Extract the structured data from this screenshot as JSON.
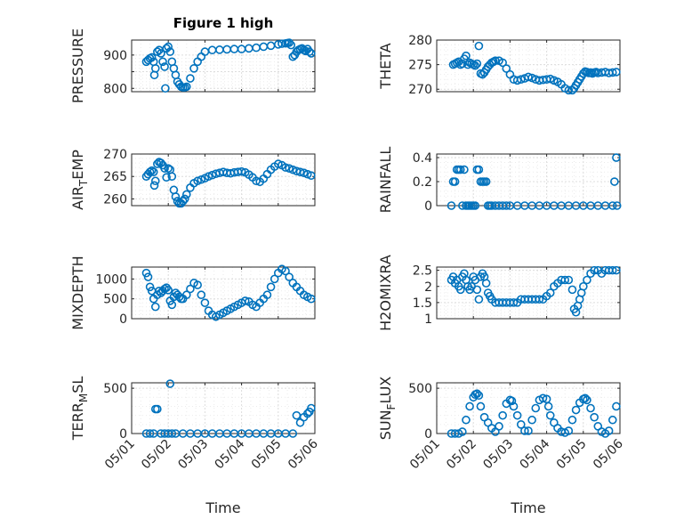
{
  "page": {
    "title": "Figure 1 high",
    "marker_color": "#0072bd"
  },
  "chart_data": [
    {
      "id": "pressure",
      "type": "scatter",
      "ylabel": "PRESSURE",
      "ylim": [
        790,
        945
      ],
      "yticks": [
        800,
        850,
        900
      ],
      "ytick_labels": [
        "800",
        "",
        "900"
      ],
      "grid": true,
      "series": [
        {
          "x": [
            1.4,
            1.45,
            1.5,
            1.55,
            1.6,
            1.62,
            1.65,
            1.7,
            1.75,
            1.8,
            1.85,
            1.9,
            1.92,
            1.95,
            2.0,
            2.05,
            2.1,
            2.15,
            2.2,
            2.25,
            2.3,
            2.35,
            2.4,
            2.45,
            2.5,
            2.6,
            2.7,
            2.8,
            2.9,
            3.0,
            3.2,
            3.4,
            3.6,
            3.8,
            4.0,
            4.2,
            4.4,
            4.6,
            4.8,
            5.0,
            5.1,
            5.2,
            5.25,
            5.3,
            5.35,
            5.4,
            5.45,
            5.5,
            5.55,
            5.6,
            5.65,
            5.7,
            5.75,
            5.8,
            5.85,
            5.9
          ],
          "y": [
            880,
            885,
            890,
            893,
            880,
            840,
            860,
            910,
            915,
            905,
            880,
            865,
            800,
            920,
            925,
            910,
            880,
            860,
            840,
            820,
            812,
            805,
            803,
            803,
            805,
            830,
            860,
            880,
            895,
            910,
            915,
            916,
            917,
            918,
            918,
            920,
            922,
            925,
            928,
            932,
            934,
            935,
            936,
            937,
            930,
            895,
            900,
            910,
            915,
            918,
            920,
            915,
            912,
            918,
            910,
            905
          ]
        }
      ]
    },
    {
      "id": "theta",
      "type": "scatter",
      "ylabel": "THETA",
      "ylim": [
        269.5,
        280
      ],
      "yticks": [
        270,
        275,
        280
      ],
      "ytick_labels": [
        "270",
        "275",
        "280"
      ],
      "grid": true,
      "series": [
        {
          "x": [
            1.45,
            1.5,
            1.55,
            1.6,
            1.65,
            1.7,
            1.75,
            1.8,
            1.85,
            1.9,
            1.95,
            2.0,
            2.05,
            2.1,
            2.15,
            2.2,
            2.25,
            2.3,
            2.35,
            2.4,
            2.45,
            2.5,
            2.55,
            2.6,
            2.7,
            2.8,
            2.9,
            3.0,
            3.1,
            3.2,
            3.3,
            3.4,
            3.5,
            3.6,
            3.7,
            3.8,
            3.9,
            4.0,
            4.1,
            4.2,
            4.3,
            4.4,
            4.5,
            4.6,
            4.7,
            4.75,
            4.8,
            4.85,
            4.9,
            4.95,
            5.0,
            5.05,
            5.1,
            5.15,
            5.2,
            5.25,
            5.3,
            5.35,
            5.4,
            5.5,
            5.6,
            5.7,
            5.8,
            5.9
          ],
          "y": [
            275,
            275.2,
            275.4,
            275.6,
            275,
            275.2,
            276.2,
            276.8,
            275,
            275.4,
            275.2,
            275,
            274.8,
            275.2,
            278.8,
            273.2,
            273,
            273.4,
            274,
            274.6,
            275,
            275.4,
            275.6,
            275.8,
            275.8,
            275.4,
            274.2,
            273,
            272,
            271.8,
            272,
            272.2,
            272.5,
            272.3,
            272,
            271.8,
            271.9,
            272,
            272.1,
            271.8,
            271.5,
            271,
            270.2,
            269.8,
            269.8,
            270.2,
            270.8,
            271.4,
            272,
            272.6,
            273.2,
            273.6,
            273.5,
            273.3,
            273.4,
            273.2,
            273.4,
            273.5,
            273.3,
            273.4,
            273.5,
            273.3,
            273.4,
            273.5
          ]
        }
      ]
    },
    {
      "id": "air_temp",
      "type": "scatter",
      "ylabel": "AIR",
      "ylabel_sub": "T",
      "ylabel_rest": "EMP",
      "ylim": [
        258.5,
        270
      ],
      "yticks": [
        260,
        265,
        270
      ],
      "ytick_labels": [
        "260",
        "265",
        "270"
      ],
      "grid": true,
      "series": [
        {
          "x": [
            1.4,
            1.45,
            1.5,
            1.55,
            1.6,
            1.62,
            1.65,
            1.7,
            1.75,
            1.8,
            1.85,
            1.9,
            1.95,
            2.0,
            2.05,
            2.1,
            2.15,
            2.2,
            2.25,
            2.3,
            2.35,
            2.4,
            2.45,
            2.5,
            2.6,
            2.7,
            2.8,
            2.9,
            3.0,
            3.1,
            3.2,
            3.3,
            3.4,
            3.5,
            3.6,
            3.7,
            3.8,
            3.9,
            4.0,
            4.1,
            4.2,
            4.3,
            4.4,
            4.5,
            4.6,
            4.7,
            4.8,
            4.9,
            5.0,
            5.1,
            5.2,
            5.3,
            5.4,
            5.5,
            5.6,
            5.7,
            5.8,
            5.9
          ],
          "y": [
            265,
            265.5,
            266,
            266.3,
            266,
            263,
            264,
            267.8,
            268.2,
            268,
            267.5,
            266.8,
            264.8,
            266.8,
            266.5,
            265,
            262,
            260.5,
            259.5,
            259,
            259,
            259.5,
            260,
            261,
            262.5,
            263.5,
            264,
            264.3,
            264.6,
            265,
            265.3,
            265.6,
            265.8,
            266,
            265.8,
            265.7,
            265.9,
            266,
            266.1,
            265.9,
            265.4,
            264.8,
            264,
            263.8,
            264.5,
            265.5,
            266.5,
            267.2,
            267.8,
            267.5,
            267,
            266.8,
            266.5,
            266.2,
            266,
            265.8,
            265.5,
            265.2
          ]
        }
      ]
    },
    {
      "id": "rainfall",
      "type": "scatter",
      "ylabel": "RAINFALL",
      "ylim": [
        0,
        0.43
      ],
      "yticks": [
        0,
        0.2,
        0.4
      ],
      "ytick_labels": [
        "0",
        "0.2",
        "0.4"
      ],
      "grid": true,
      "series": [
        {
          "x": [
            1.4,
            1.45,
            1.5,
            1.55,
            1.6,
            1.65,
            1.7,
            1.75,
            1.8,
            1.85,
            1.9,
            1.95,
            2.0,
            2.05,
            2.1,
            2.15,
            2.2,
            2.25,
            2.3,
            2.35,
            2.4,
            2.45,
            2.5,
            2.6,
            2.7,
            2.8,
            2.9,
            3.0,
            3.2,
            3.4,
            3.6,
            3.8,
            4.0,
            4.2,
            4.4,
            4.6,
            4.8,
            5.0,
            5.2,
            5.4,
            5.6,
            5.8,
            5.85,
            5.9,
            5.92
          ],
          "y": [
            0,
            0.2,
            0.2,
            0.3,
            0.3,
            0.3,
            0,
            0.3,
            0,
            0,
            0,
            0,
            0,
            0,
            0.3,
            0.3,
            0.2,
            0.2,
            0.2,
            0.2,
            0,
            0,
            0,
            0,
            0,
            0,
            0,
            0,
            0,
            0,
            0,
            0,
            0,
            0,
            0,
            0,
            0,
            0,
            0,
            0,
            0,
            0,
            0.2,
            0.4,
            0
          ]
        }
      ]
    },
    {
      "id": "mixdepth",
      "type": "scatter",
      "ylabel": "MIXDEPTH",
      "ylim": [
        0,
        1300
      ],
      "yticks": [
        0,
        500,
        1000
      ],
      "ytick_labels": [
        "0",
        "500",
        "1000"
      ],
      "grid": true,
      "series": [
        {
          "x": [
            1.4,
            1.45,
            1.5,
            1.55,
            1.6,
            1.65,
            1.7,
            1.75,
            1.8,
            1.85,
            1.9,
            1.95,
            2.0,
            2.05,
            2.1,
            2.15,
            2.2,
            2.25,
            2.3,
            2.35,
            2.4,
            2.5,
            2.6,
            2.7,
            2.8,
            2.9,
            3.0,
            3.1,
            3.2,
            3.3,
            3.4,
            3.5,
            3.6,
            3.7,
            3.8,
            3.9,
            4.0,
            4.1,
            4.2,
            4.3,
            4.4,
            4.5,
            4.6,
            4.7,
            4.8,
            4.9,
            5.0,
            5.1,
            5.2,
            5.3,
            5.4,
            5.5,
            5.6,
            5.7,
            5.8,
            5.9
          ],
          "y": [
            1150,
            1050,
            800,
            700,
            500,
            300,
            600,
            700,
            650,
            700,
            750,
            780,
            720,
            450,
            350,
            550,
            650,
            600,
            550,
            500,
            500,
            600,
            750,
            900,
            850,
            600,
            400,
            200,
            100,
            50,
            100,
            150,
            200,
            250,
            300,
            350,
            400,
            450,
            430,
            350,
            300,
            400,
            500,
            600,
            800,
            1000,
            1150,
            1250,
            1200,
            1050,
            900,
            800,
            700,
            600,
            550,
            500
          ]
        }
      ]
    },
    {
      "id": "h2omixra",
      "type": "scatter",
      "ylabel": "H2OMIXRA",
      "ylim": [
        1,
        2.6
      ],
      "yticks": [
        1,
        1.5,
        2,
        2.5
      ],
      "ytick_labels": [
        "1",
        "1.5",
        "2",
        "2.5"
      ],
      "grid": true,
      "series": [
        {
          "x": [
            1.4,
            1.45,
            1.5,
            1.55,
            1.6,
            1.65,
            1.7,
            1.75,
            1.8,
            1.85,
            1.9,
            1.95,
            2.0,
            2.05,
            2.1,
            2.15,
            2.2,
            2.25,
            2.3,
            2.35,
            2.4,
            2.45,
            2.5,
            2.6,
            2.7,
            2.8,
            2.9,
            3.0,
            3.1,
            3.2,
            3.3,
            3.4,
            3.5,
            3.6,
            3.7,
            3.8,
            3.9,
            4.0,
            4.1,
            4.2,
            4.3,
            4.4,
            4.5,
            4.6,
            4.7,
            4.75,
            4.8,
            4.85,
            4.9,
            4.95,
            5.0,
            5.1,
            5.2,
            5.3,
            5.4,
            5.5,
            5.6,
            5.7,
            5.8,
            5.9
          ],
          "y": [
            2.2,
            2.3,
            2.1,
            2.2,
            2.0,
            1.9,
            2.3,
            2.4,
            2.2,
            2.0,
            1.9,
            2.0,
            2.3,
            2.2,
            1.9,
            1.6,
            2.3,
            2.4,
            2.3,
            2.1,
            1.8,
            1.7,
            1.6,
            1.5,
            1.5,
            1.5,
            1.5,
            1.5,
            1.5,
            1.5,
            1.6,
            1.6,
            1.6,
            1.6,
            1.6,
            1.6,
            1.6,
            1.7,
            1.8,
            2.0,
            2.1,
            2.2,
            2.2,
            2.2,
            1.9,
            1.3,
            1.2,
            1.4,
            1.6,
            1.8,
            2.0,
            2.2,
            2.4,
            2.5,
            2.5,
            2.4,
            2.5,
            2.5,
            2.5,
            2.5
          ]
        }
      ]
    },
    {
      "id": "terr_msl",
      "type": "scatter",
      "ylabel": "TERR",
      "ylabel_sub": "M",
      "ylabel_rest": "SL",
      "ylim": [
        0,
        560
      ],
      "yticks": [
        0,
        500
      ],
      "ytick_labels": [
        "0",
        "500"
      ],
      "grid": true,
      "series": [
        {
          "x": [
            1.4,
            1.5,
            1.6,
            1.65,
            1.7,
            1.8,
            1.9,
            2.0,
            2.05,
            2.1,
            2.2,
            2.4,
            2.6,
            2.8,
            3.0,
            3.2,
            3.4,
            3.6,
            3.8,
            4.0,
            4.2,
            4.4,
            4.6,
            4.8,
            5.0,
            5.2,
            5.4,
            5.5,
            5.6,
            5.7,
            5.8,
            5.85,
            5.9
          ],
          "y": [
            0,
            0,
            0,
            270,
            270,
            0,
            0,
            0,
            550,
            0,
            0,
            0,
            0,
            0,
            0,
            0,
            0,
            0,
            0,
            0,
            0,
            0,
            0,
            0,
            0,
            0,
            0,
            200,
            120,
            180,
            220,
            240,
            280
          ]
        }
      ]
    },
    {
      "id": "sun_flux",
      "type": "scatter",
      "ylabel": "SUN",
      "ylabel_sub": "F",
      "ylabel_rest": "LUX",
      "ylim": [
        0,
        560
      ],
      "yticks": [
        0,
        500
      ],
      "ytick_labels": [
        "0",
        "500"
      ],
      "grid": true,
      "series": [
        {
          "x": [
            1.4,
            1.5,
            1.6,
            1.7,
            1.8,
            1.9,
            2.0,
            2.05,
            2.1,
            2.15,
            2.2,
            2.3,
            2.4,
            2.5,
            2.6,
            2.7,
            2.8,
            2.9,
            3.0,
            3.05,
            3.1,
            3.2,
            3.3,
            3.4,
            3.5,
            3.6,
            3.7,
            3.8,
            3.9,
            4.0,
            4.05,
            4.1,
            4.2,
            4.3,
            4.4,
            4.5,
            4.6,
            4.7,
            4.8,
            4.9,
            5.0,
            5.05,
            5.1,
            5.2,
            5.3,
            5.4,
            5.5,
            5.6,
            5.7,
            5.8,
            5.9
          ],
          "y": [
            0,
            0,
            0,
            20,
            150,
            300,
            400,
            430,
            440,
            420,
            300,
            180,
            120,
            60,
            20,
            80,
            200,
            330,
            370,
            360,
            300,
            200,
            100,
            30,
            30,
            150,
            280,
            370,
            390,
            380,
            300,
            200,
            120,
            60,
            20,
            10,
            30,
            150,
            260,
            340,
            380,
            390,
            370,
            280,
            180,
            80,
            20,
            0,
            30,
            150,
            300
          ]
        }
      ]
    }
  ],
  "xaxis": {
    "xlim": [
      1,
      6
    ],
    "ticks": [
      1,
      2,
      3,
      4,
      5,
      6
    ],
    "tick_labels": [
      "05/01",
      "05/02",
      "05/03",
      "05/04",
      "05/05",
      "05/06"
    ],
    "xlabel": "Time"
  }
}
